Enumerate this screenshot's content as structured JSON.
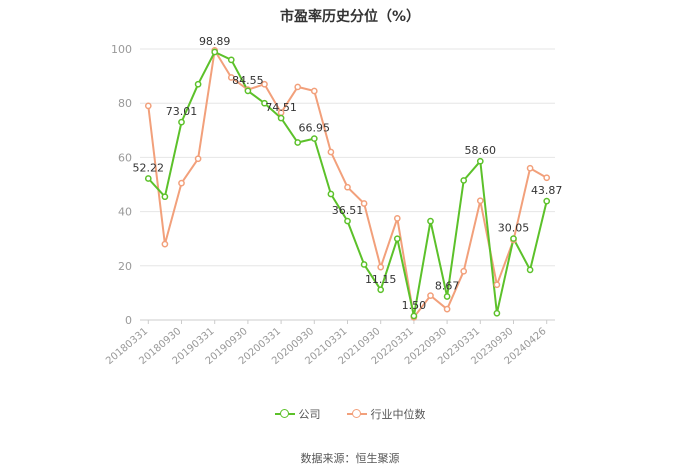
{
  "chart_data": {
    "type": "line",
    "title": "市盈率历史分位（%）",
    "xlabel": "",
    "ylabel": "",
    "ylim": [
      0,
      100
    ],
    "yticks": [
      0,
      20,
      40,
      60,
      80,
      100
    ],
    "grid": true,
    "legend_position": "bottom",
    "x_tick_labels": [
      "20180331",
      "20180930",
      "20190331",
      "20190930",
      "20200331",
      "20200930",
      "20210331",
      "20210930",
      "20220331",
      "20220930",
      "20230331",
      "20230930",
      "20240426"
    ],
    "x": [
      "20180331",
      "20180630",
      "20180930",
      "20181231",
      "20190331",
      "20190630",
      "20190930",
      "20191231",
      "20200331",
      "20200630",
      "20200930",
      "20201231",
      "20210331",
      "20210630",
      "20210930",
      "20211231",
      "20220331",
      "20220630",
      "20220930",
      "20221231",
      "20230331",
      "20230630",
      "20230930",
      "20231231",
      "20240426"
    ],
    "series": [
      {
        "name": "公司",
        "color": "#5cc12a",
        "values": [
          52.22,
          45.5,
          73.01,
          87.0,
          98.89,
          96.0,
          84.55,
          80.0,
          74.51,
          65.5,
          66.95,
          46.5,
          36.51,
          20.5,
          11.15,
          30.0,
          1.5,
          36.5,
          8.67,
          51.5,
          58.6,
          2.5,
          30.05,
          18.5,
          43.87
        ]
      },
      {
        "name": "行业中位数",
        "color": "#f2a07b",
        "values": [
          79.0,
          28.0,
          50.5,
          59.5,
          99.5,
          89.5,
          85.0,
          87.0,
          76.5,
          86.0,
          84.5,
          62.0,
          49.0,
          43.0,
          19.5,
          37.5,
          1.0,
          9.0,
          4.0,
          18.0,
          44.0,
          13.0,
          29.5,
          56.0,
          52.5
        ]
      }
    ],
    "data_labels": [
      {
        "series": 0,
        "index": 0,
        "text": "52.22"
      },
      {
        "series": 0,
        "index": 2,
        "text": "73.01"
      },
      {
        "series": 0,
        "index": 4,
        "text": "98.89"
      },
      {
        "series": 0,
        "index": 6,
        "text": "84.55"
      },
      {
        "series": 0,
        "index": 8,
        "text": "74.51"
      },
      {
        "series": 0,
        "index": 10,
        "text": "66.95"
      },
      {
        "series": 0,
        "index": 12,
        "text": "36.51"
      },
      {
        "series": 0,
        "index": 14,
        "text": "11.15"
      },
      {
        "series": 0,
        "index": 16,
        "text": "1.50"
      },
      {
        "series": 0,
        "index": 18,
        "text": "8.67"
      },
      {
        "series": 0,
        "index": 20,
        "text": "58.60"
      },
      {
        "series": 0,
        "index": 22,
        "text": "30.05"
      },
      {
        "series": 0,
        "index": 24,
        "text": "43.87"
      }
    ],
    "axis_color": "#cccccc",
    "grid_color": "#e6e6e6",
    "tick_color": "#999999"
  },
  "source_text": "数据来源：恒生聚源"
}
